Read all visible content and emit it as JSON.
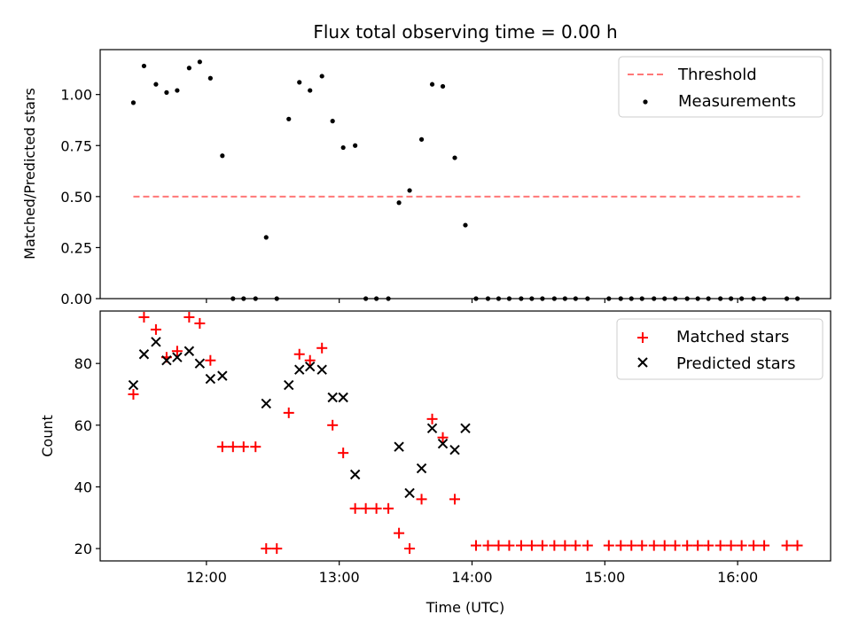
{
  "chart_data": [
    {
      "type": "line+scatter",
      "title": "Flux total observing time = 0.00 h",
      "xlabel": "",
      "ylabel": "Matched/Predicted stars",
      "xlim_hours": [
        11.2,
        16.7
      ],
      "ylim": [
        0,
        1.22
      ],
      "yticks": [
        0.0,
        0.25,
        0.5,
        0.75,
        1.0
      ],
      "ytick_labels": [
        "0.00",
        "0.25",
        "0.50",
        "0.75",
        "1.00"
      ],
      "legend": {
        "location": "top-right",
        "entries": [
          "Threshold",
          "Measurements"
        ]
      },
      "threshold": {
        "name": "Threshold",
        "value": 0.5,
        "x_start": 11.45,
        "x_end": 16.47,
        "color": "#ff7777",
        "style": "dashed"
      },
      "measurements": {
        "name": "Measurements",
        "color": "#000000",
        "x": [
          11.45,
          11.53,
          11.62,
          11.7,
          11.78,
          11.87,
          11.95,
          12.03,
          12.12,
          12.2,
          12.28,
          12.37,
          12.45,
          12.53,
          12.62,
          12.7,
          12.78,
          12.87,
          12.95,
          13.03,
          13.12,
          13.2,
          13.28,
          13.37,
          13.45,
          13.53,
          13.62,
          13.7,
          13.78,
          13.87,
          13.95,
          14.03,
          14.12,
          14.2,
          14.28,
          14.37,
          14.45,
          14.53,
          14.62,
          14.7,
          14.78,
          14.87,
          15.03,
          15.12,
          15.2,
          15.28,
          15.37,
          15.45,
          15.53,
          15.62,
          15.7,
          15.78,
          15.87,
          15.95,
          16.03,
          16.12,
          16.2,
          16.37,
          16.45
        ],
        "y": [
          0.96,
          1.14,
          1.05,
          1.01,
          1.02,
          1.13,
          1.16,
          1.08,
          0.7,
          0,
          0,
          0,
          0.3,
          0,
          0.88,
          1.06,
          1.02,
          1.09,
          0.87,
          0.74,
          0.75,
          0,
          0,
          0,
          0.47,
          0.53,
          0.78,
          1.05,
          1.04,
          0.69,
          0.36,
          0,
          0,
          0,
          0,
          0,
          0,
          0,
          0,
          0,
          0,
          0,
          0,
          0,
          0,
          0,
          0,
          0,
          0,
          0,
          0,
          0,
          0,
          0,
          0,
          0,
          0,
          0,
          0
        ]
      }
    },
    {
      "type": "scatter",
      "title": "",
      "xlabel": "Time (UTC)",
      "ylabel": "Count",
      "xlim_hours": [
        11.2,
        16.7
      ],
      "ylim": [
        16,
        97
      ],
      "yticks": [
        20,
        40,
        60,
        80
      ],
      "ytick_labels": [
        "20",
        "40",
        "60",
        "80"
      ],
      "xticks_hours": [
        12,
        13,
        14,
        15,
        16
      ],
      "xtick_labels": [
        "12:00",
        "13:00",
        "14:00",
        "15:00",
        "16:00"
      ],
      "legend": {
        "location": "top-right",
        "entries": [
          "Matched stars",
          "Predicted stars"
        ]
      },
      "series": [
        {
          "name": "Matched stars",
          "marker": "plus",
          "color": "#ff0000",
          "x": [
            11.45,
            11.53,
            11.62,
            11.7,
            11.78,
            11.87,
            11.95,
            12.03,
            12.12,
            12.2,
            12.28,
            12.37,
            12.45,
            12.53,
            12.62,
            12.7,
            12.78,
            12.87,
            12.95,
            13.03,
            13.12,
            13.2,
            13.28,
            13.37,
            13.45,
            13.53,
            13.62,
            13.7,
            13.78,
            13.87,
            14.03,
            14.12,
            14.2,
            14.28,
            14.37,
            14.45,
            14.53,
            14.62,
            14.7,
            14.78,
            14.87,
            15.03,
            15.12,
            15.2,
            15.28,
            15.37,
            15.45,
            15.53,
            15.62,
            15.7,
            15.78,
            15.87,
            15.95,
            16.03,
            16.12,
            16.2,
            16.37,
            16.45
          ],
          "y": [
            70,
            95,
            91,
            82,
            84,
            95,
            93,
            81,
            53,
            53,
            53,
            53,
            20,
            20,
            64,
            83,
            81,
            85,
            60,
            51,
            33,
            33,
            33,
            33,
            25,
            20,
            36,
            62,
            56,
            36,
            21,
            21,
            21,
            21,
            21,
            21,
            21,
            21,
            21,
            21,
            21,
            21,
            21,
            21,
            21,
            21,
            21,
            21,
            21,
            21,
            21,
            21,
            21,
            21,
            21,
            21,
            21,
            21
          ]
        },
        {
          "name": "Predicted stars",
          "marker": "x",
          "color": "#000000",
          "x": [
            11.45,
            11.53,
            11.62,
            11.7,
            11.78,
            11.87,
            11.95,
            12.03,
            12.12,
            12.45,
            12.62,
            12.7,
            12.78,
            12.87,
            12.95,
            13.03,
            13.12,
            13.45,
            13.53,
            13.62,
            13.7,
            13.78,
            13.87,
            13.95
          ],
          "y": [
            73,
            83,
            87,
            81,
            82,
            84,
            80,
            75,
            76,
            67,
            73,
            78,
            79,
            78,
            69,
            69,
            44,
            53,
            38,
            46,
            59,
            54,
            52,
            59
          ]
        }
      ]
    }
  ]
}
